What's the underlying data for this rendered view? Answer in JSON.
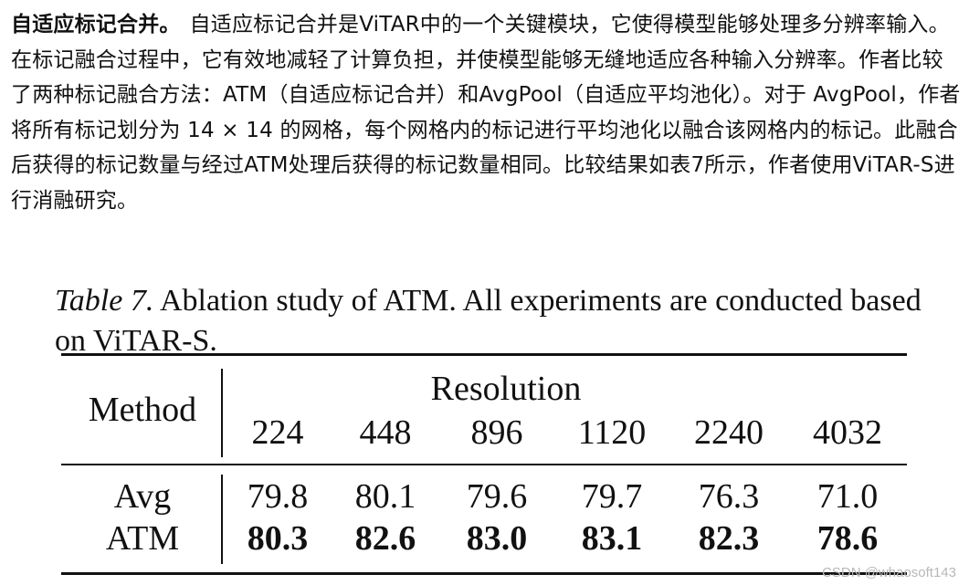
{
  "paragraph": {
    "lead": "自适应标记合并。",
    "body": "自适应标记合并是ViTAR中的一个关键模块，它使得模型能够处理多分辨率输入。在标记融合过程中，它有效地减轻了计算负担，并使模型能够无缝地适应各种输入分辨率。作者比较了两种标记融合方法：ATM（自适应标记合并）和AvgPool（自适应平均池化）。对于 AvgPool，作者将所有标记划分为 14 × 14 的网格，每个网格内的标记进行平均池化以融合该网格内的标记。此融合后获得的标记数量与经过ATM处理后获得的标记数量相同。比较结果如表7所示，作者使用ViTAR-S进行消融研究。"
  },
  "table": {
    "caption_label": "Table 7.",
    "caption_text": "Ablation study of ATM. All experiments are conducted based on ViTAR-S.",
    "method_header": "Method",
    "group_header": "Resolution",
    "columns": [
      "224",
      "448",
      "896",
      "1120",
      "2240",
      "4032"
    ],
    "rows": [
      {
        "method": "Avg",
        "values": [
          "79.8",
          "80.1",
          "79.6",
          "79.7",
          "76.3",
          "71.0"
        ],
        "bold": false
      },
      {
        "method": "ATM",
        "values": [
          "80.3",
          "82.6",
          "83.0",
          "83.1",
          "82.3",
          "78.6"
        ],
        "bold": true
      }
    ]
  },
  "watermark": "CSDN @whaosoft143"
}
